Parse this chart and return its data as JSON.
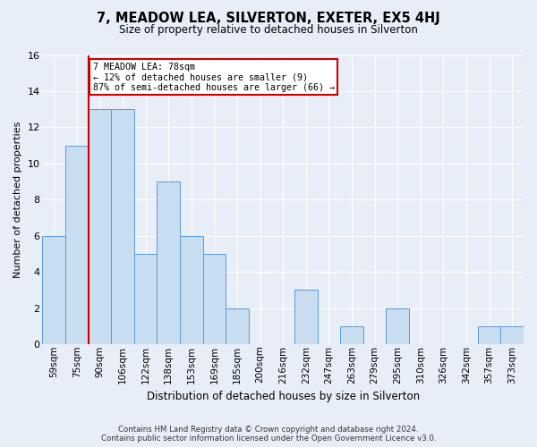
{
  "title": "7, MEADOW LEA, SILVERTON, EXETER, EX5 4HJ",
  "subtitle": "Size of property relative to detached houses in Silverton",
  "xlabel": "Distribution of detached houses by size in Silverton",
  "ylabel": "Number of detached properties",
  "categories": [
    "59sqm",
    "75sqm",
    "90sqm",
    "106sqm",
    "122sqm",
    "138sqm",
    "153sqm",
    "169sqm",
    "185sqm",
    "200sqm",
    "216sqm",
    "232sqm",
    "247sqm",
    "263sqm",
    "279sqm",
    "295sqm",
    "310sqm",
    "326sqm",
    "342sqm",
    "357sqm",
    "373sqm"
  ],
  "values": [
    6,
    11,
    13,
    13,
    5,
    9,
    6,
    5,
    2,
    0,
    0,
    3,
    0,
    1,
    0,
    2,
    0,
    0,
    0,
    1,
    1
  ],
  "bar_color": "#c9ddf0",
  "bar_edge_color": "#5b9bd5",
  "ylim": [
    0,
    16
  ],
  "yticks": [
    0,
    2,
    4,
    6,
    8,
    10,
    12,
    14,
    16
  ],
  "property_line_x": 1.5,
  "annotation_text": "7 MEADOW LEA: 78sqm\n← 12% of detached houses are smaller (9)\n87% of semi-detached houses are larger (66) →",
  "annotation_box_color": "#ffffff",
  "annotation_box_edge_color": "#cc0000",
  "property_line_color": "#cc0000",
  "footer_line1": "Contains HM Land Registry data © Crown copyright and database right 2024.",
  "footer_line2": "Contains public sector information licensed under the Open Government Licence v3.0.",
  "background_color": "#e8eef7",
  "plot_bg_color": "#e8eef7",
  "grid_color": "#ffffff"
}
